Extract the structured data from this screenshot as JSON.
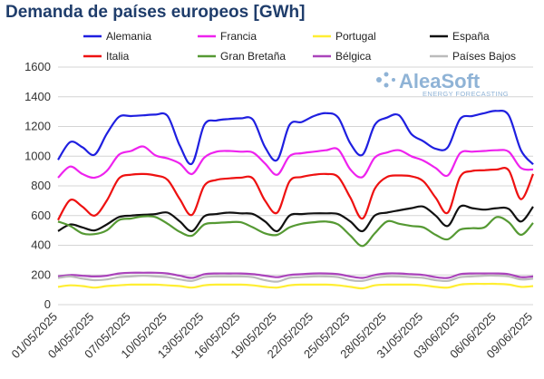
{
  "chart_data": {
    "type": "line",
    "title": "Demanda de países europeos [GWh]",
    "ylim": [
      0,
      1600
    ],
    "yticks": [
      0,
      200,
      400,
      600,
      800,
      1000,
      1200,
      1400,
      1600
    ],
    "xticks": [
      "01/05/2025",
      "04/05/2025",
      "07/05/2025",
      "10/05/2025",
      "13/05/2025",
      "16/05/2025",
      "19/05/2025",
      "22/05/2025",
      "25/05/2025",
      "28/05/2025",
      "31/05/2025",
      "03/06/2025",
      "06/06/2025",
      "09/06/2025"
    ],
    "grid": "horizontal",
    "legend_position": "top",
    "watermark": {
      "brand": "AleaSoft",
      "sub": "ENERGY FORECASTING"
    },
    "x": [
      "01/05",
      "02/05",
      "03/05",
      "04/05",
      "05/05",
      "06/05",
      "07/05",
      "08/05",
      "09/05",
      "10/05",
      "11/05",
      "12/05",
      "13/05",
      "14/05",
      "15/05",
      "16/05",
      "17/05",
      "18/05",
      "19/05",
      "20/05",
      "21/05",
      "22/05",
      "23/05",
      "24/05",
      "25/05",
      "26/05",
      "27/05",
      "28/05",
      "29/05",
      "30/05",
      "31/05",
      "01/06",
      "02/06",
      "03/06",
      "04/06",
      "05/06",
      "06/06",
      "07/06",
      "08/06",
      "09/06"
    ],
    "series": [
      {
        "name": "Alemania",
        "color": "#1f1fe0",
        "values": [
          975,
          1095,
          1060,
          1010,
          1150,
          1265,
          1270,
          1275,
          1280,
          1270,
          1070,
          950,
          1210,
          1240,
          1250,
          1255,
          1245,
          1060,
          975,
          1210,
          1230,
          1270,
          1290,
          1260,
          1085,
          1010,
          1210,
          1260,
          1275,
          1150,
          1100,
          1050,
          1060,
          1250,
          1270,
          1290,
          1305,
          1275,
          1040,
          945
        ]
      },
      {
        "name": "Francia",
        "color": "#ee22ee",
        "values": [
          855,
          930,
          880,
          855,
          900,
          1010,
          1035,
          1065,
          1005,
          985,
          950,
          880,
          990,
          1030,
          1035,
          1030,
          1025,
          950,
          875,
          1000,
          1020,
          1030,
          1040,
          1045,
          910,
          860,
          990,
          1025,
          1040,
          1000,
          970,
          920,
          870,
          1020,
          1030,
          1035,
          1040,
          1030,
          920,
          910
        ]
      },
      {
        "name": "Portugal",
        "color": "#ffee33",
        "values": [
          120,
          130,
          125,
          115,
          125,
          130,
          135,
          135,
          135,
          130,
          125,
          115,
          130,
          135,
          135,
          135,
          130,
          120,
          115,
          130,
          135,
          135,
          135,
          130,
          120,
          110,
          130,
          135,
          135,
          135,
          130,
          120,
          115,
          135,
          140,
          140,
          140,
          135,
          120,
          125
        ]
      },
      {
        "name": "España",
        "color": "#111111",
        "values": [
          495,
          540,
          520,
          500,
          540,
          590,
          600,
          605,
          610,
          620,
          560,
          495,
          595,
          610,
          620,
          615,
          610,
          560,
          495,
          600,
          610,
          615,
          615,
          610,
          560,
          495,
          600,
          620,
          635,
          650,
          660,
          600,
          530,
          660,
          650,
          640,
          650,
          645,
          560,
          660
        ]
      },
      {
        "name": "Italia",
        "color": "#ee1111",
        "values": [
          570,
          705,
          660,
          600,
          700,
          850,
          875,
          880,
          870,
          840,
          710,
          605,
          800,
          840,
          850,
          855,
          850,
          700,
          620,
          830,
          860,
          875,
          880,
          860,
          720,
          580,
          780,
          860,
          870,
          865,
          830,
          720,
          620,
          860,
          900,
          905,
          910,
          905,
          710,
          880
        ]
      },
      {
        "name": "Gran Bretaña",
        "color": "#559933",
        "values": [
          560,
          530,
          480,
          475,
          500,
          570,
          580,
          595,
          590,
          545,
          490,
          465,
          540,
          550,
          555,
          555,
          520,
          480,
          470,
          520,
          545,
          555,
          560,
          540,
          465,
          395,
          480,
          560,
          545,
          530,
          520,
          470,
          440,
          505,
          515,
          520,
          590,
          555,
          470,
          550
        ]
      },
      {
        "name": "Bélgica",
        "color": "#aa44bb",
        "values": [
          190,
          200,
          195,
          190,
          195,
          210,
          215,
          215,
          215,
          210,
          195,
          180,
          205,
          210,
          210,
          210,
          205,
          195,
          185,
          200,
          205,
          210,
          210,
          205,
          190,
          180,
          200,
          210,
          210,
          205,
          200,
          185,
          180,
          205,
          210,
          210,
          210,
          205,
          185,
          190
        ]
      },
      {
        "name": "Países Bajos",
        "color": "#bbbbbb",
        "values": [
          180,
          190,
          175,
          165,
          170,
          185,
          190,
          195,
          190,
          185,
          170,
          160,
          185,
          190,
          190,
          190,
          185,
          165,
          155,
          180,
          185,
          190,
          190,
          185,
          165,
          160,
          180,
          190,
          190,
          185,
          180,
          165,
          160,
          185,
          190,
          195,
          195,
          190,
          170,
          175
        ]
      }
    ]
  }
}
